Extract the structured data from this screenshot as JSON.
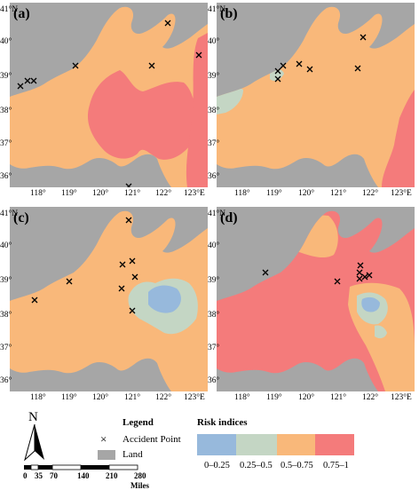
{
  "panels": [
    {
      "label": "(a)",
      "id": "a"
    },
    {
      "label": "(b)",
      "id": "b"
    },
    {
      "label": "(c)",
      "id": "c"
    },
    {
      "label": "(d)",
      "id": "d"
    }
  ],
  "axes": {
    "lon_ticks": [
      "118°",
      "119°",
      "120°",
      "121°",
      "122°",
      "123°E"
    ],
    "lat_ticks": [
      "41°N",
      "40°",
      "39°",
      "38°",
      "37°",
      "36°"
    ]
  },
  "legend": {
    "title": "Legend",
    "accident_point": "Accident Point",
    "land": "Land",
    "accident_symbol": "×"
  },
  "risk": {
    "title": "Risk indices",
    "classes": [
      {
        "label": "0–0.25",
        "color": "#97b9dc"
      },
      {
        "label": "0.25–0.5",
        "color": "#c4d6c4"
      },
      {
        "label": "0.5–0.75",
        "color": "#f9b87a"
      },
      {
        "label": "0.75–1",
        "color": "#f47b7b"
      }
    ]
  },
  "north_arrow": {
    "label": "N"
  },
  "scale_bar": {
    "ticks": [
      "0",
      "35",
      "70",
      "140",
      "210",
      "280"
    ],
    "unit": "Miles"
  },
  "colors": {
    "land": "#a6a6a6",
    "marker": "#000000"
  }
}
